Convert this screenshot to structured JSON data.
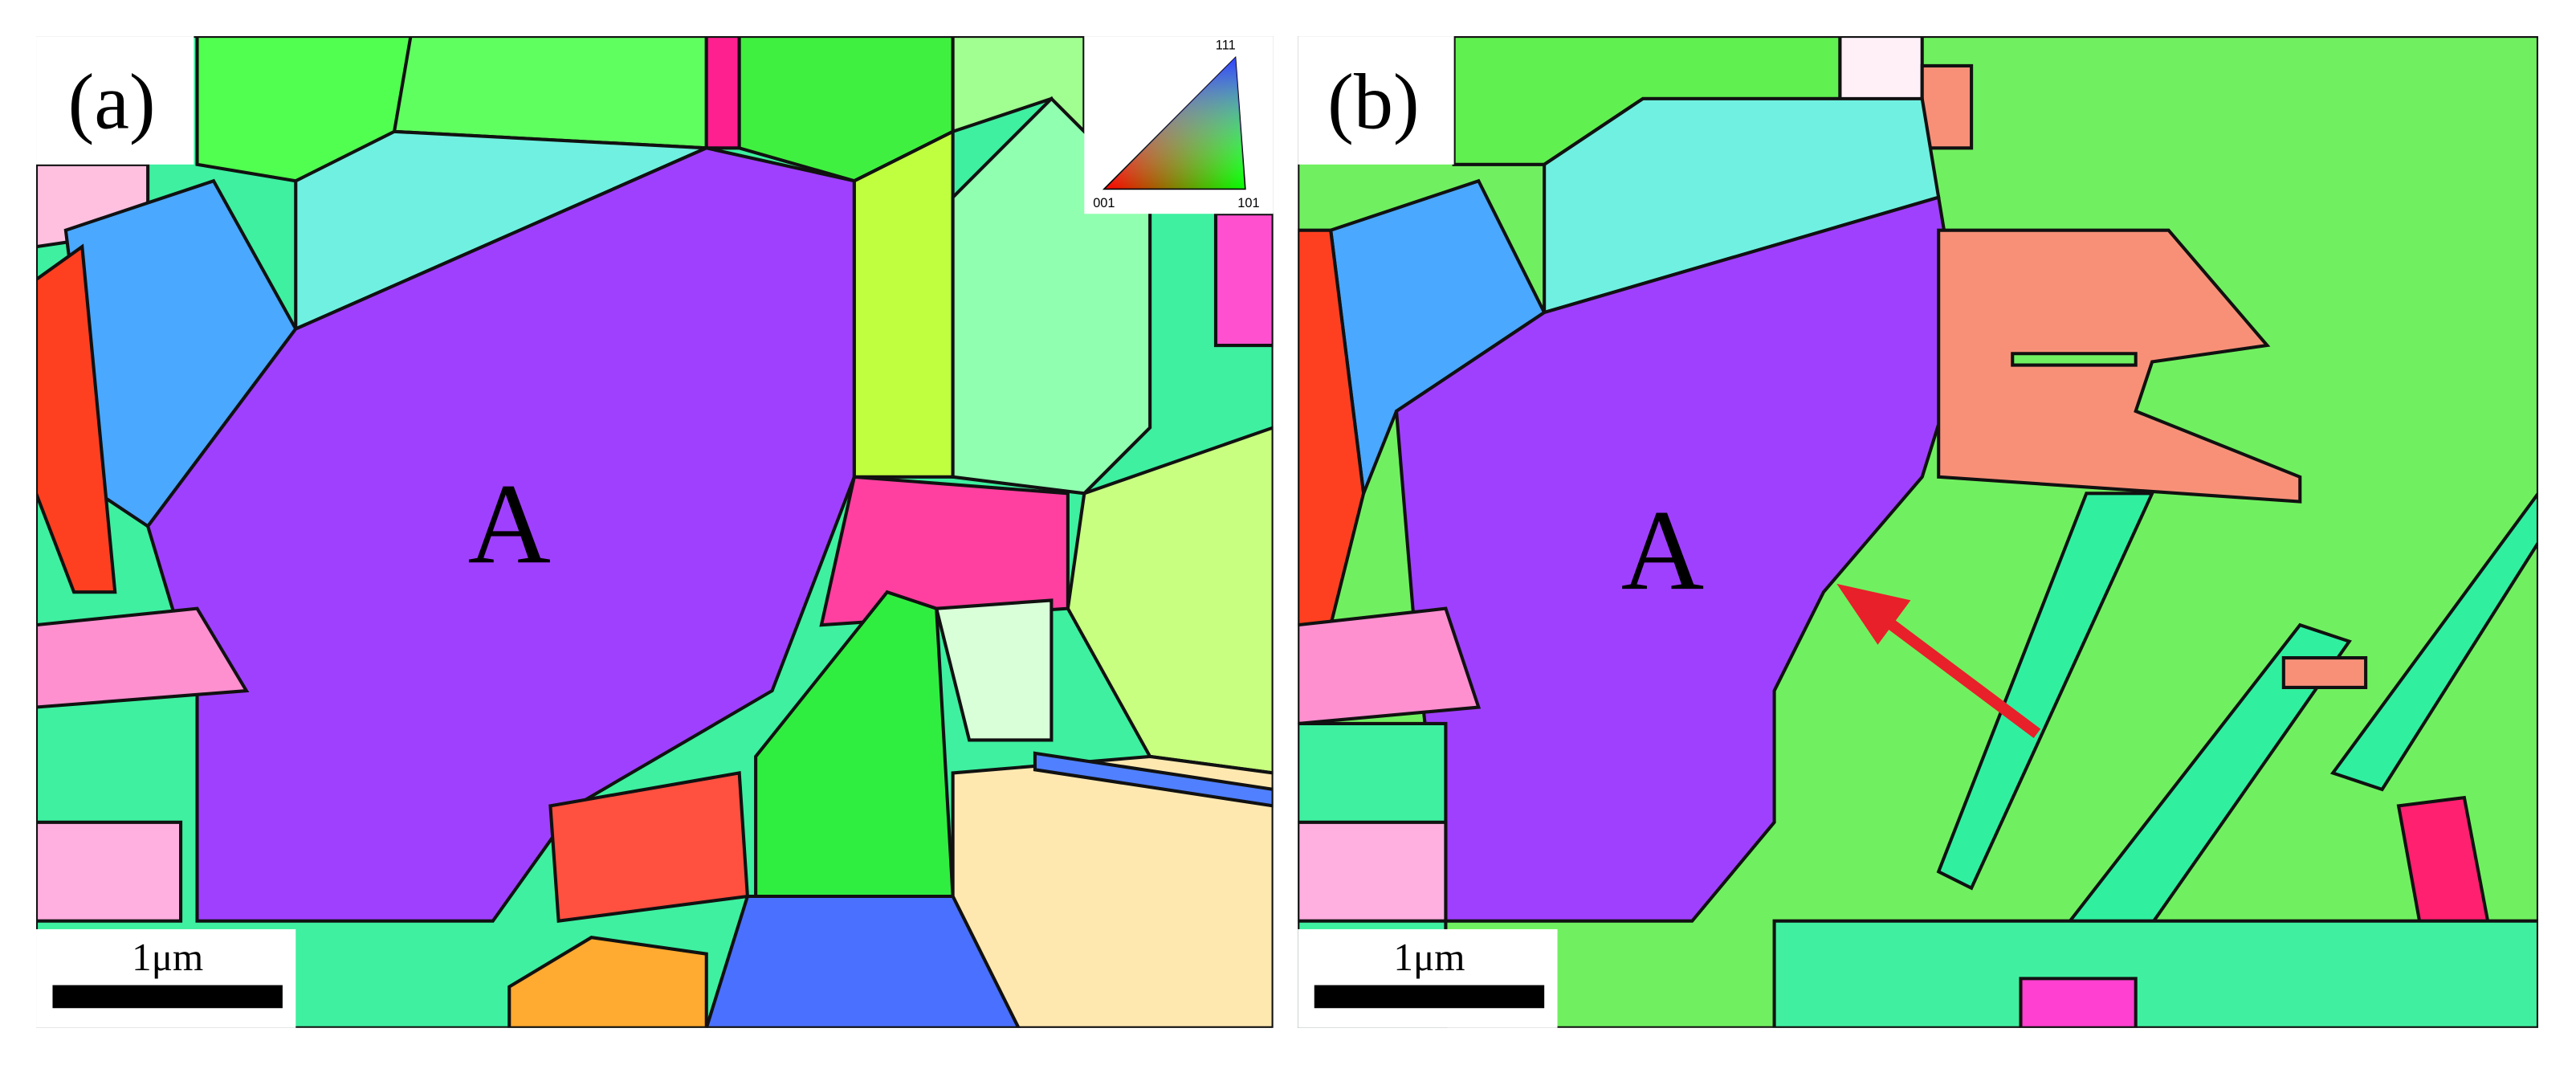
{
  "panels": [
    {
      "label": "(a)",
      "grain_label": "A",
      "scale_bar": "1μm"
    },
    {
      "label": "(b)",
      "grain_label": "A",
      "scale_bar": "1μm"
    }
  ],
  "legend": {
    "top": "111",
    "left": "001",
    "right": "101"
  }
}
